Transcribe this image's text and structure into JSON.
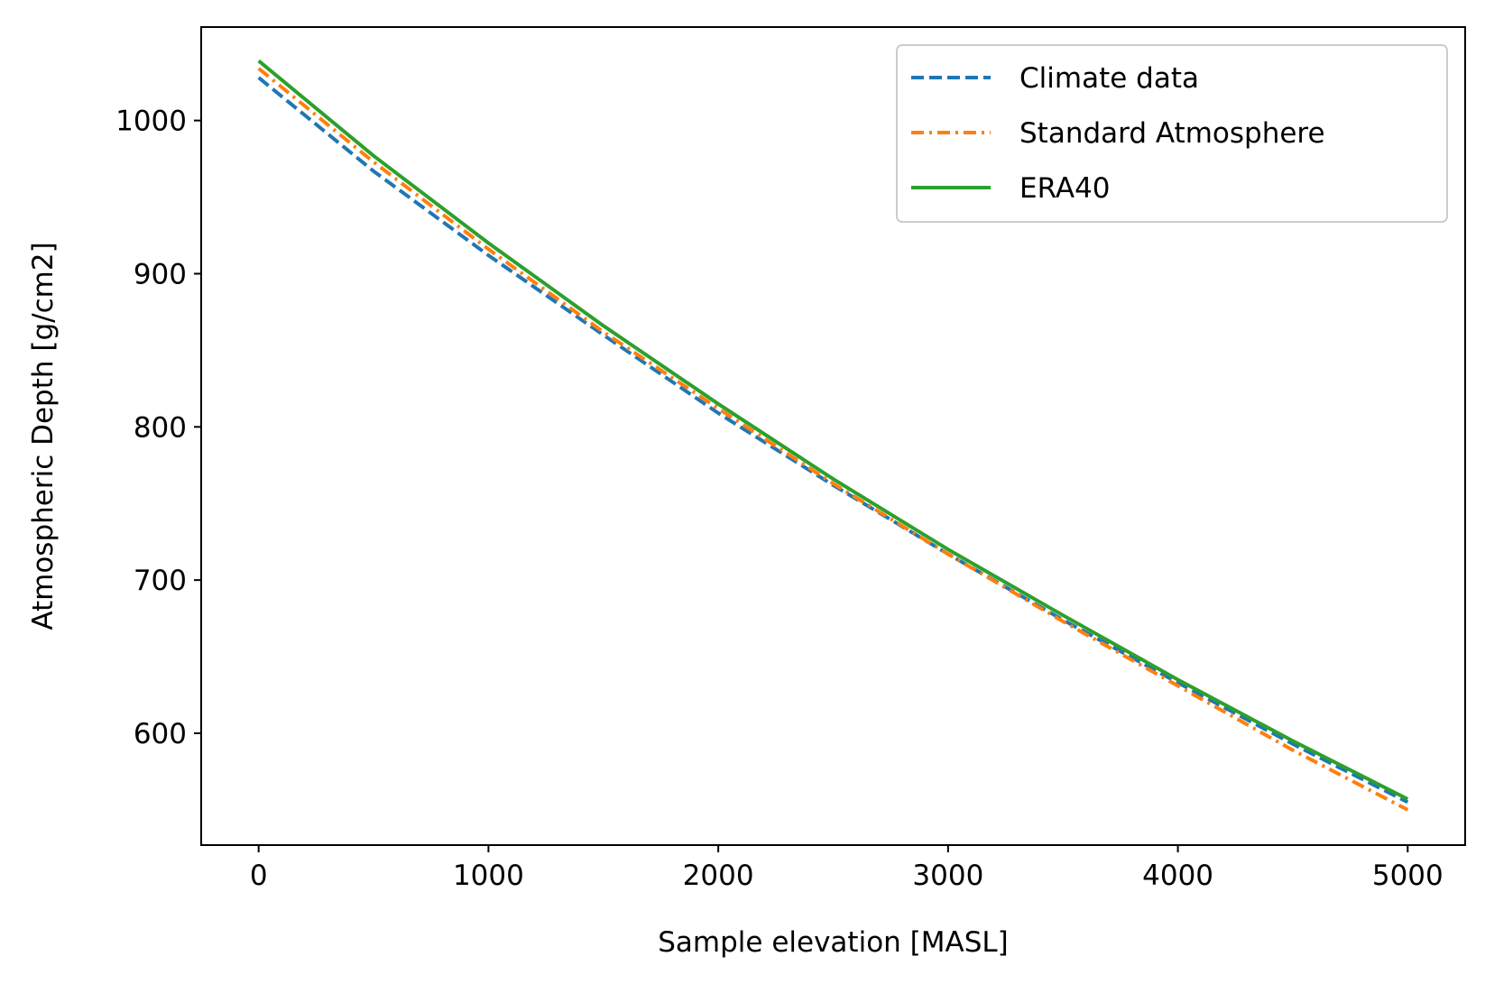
{
  "chart_data": {
    "type": "line",
    "title": "",
    "xlabel": "Sample elevation [MASL]",
    "ylabel": "Atmospheric Depth [g/cm2]",
    "xlim": [
      -250,
      5250
    ],
    "ylim": [
      527,
      1061
    ],
    "xticks": [
      0,
      1000,
      2000,
      3000,
      4000,
      5000
    ],
    "yticks": [
      600,
      700,
      800,
      900,
      1000
    ],
    "grid": false,
    "legend_position": "top-right",
    "x": [
      0,
      500,
      1000,
      1500,
      2000,
      2500,
      3000,
      3500,
      4000,
      4500,
      5000
    ],
    "series": [
      {
        "name": "Climate data",
        "color": "#1f77b4",
        "line_style": "dashed",
        "values": [
          1028,
          967,
          912,
          860,
          809,
          762,
          717,
          674,
          633,
          593,
          555
        ]
      },
      {
        "name": "Standard Atmosphere",
        "color": "#ff7f0e",
        "line_style": "dashdot",
        "values": [
          1034,
          973,
          916,
          862,
          812,
          763,
          717,
          673,
          631,
          589,
          550
        ]
      },
      {
        "name": "ERA40",
        "color": "#2ca02c",
        "line_style": "solid",
        "values": [
          1039,
          977,
          920,
          866,
          815,
          766,
          720,
          677,
          635,
          595,
          557
        ]
      }
    ]
  }
}
